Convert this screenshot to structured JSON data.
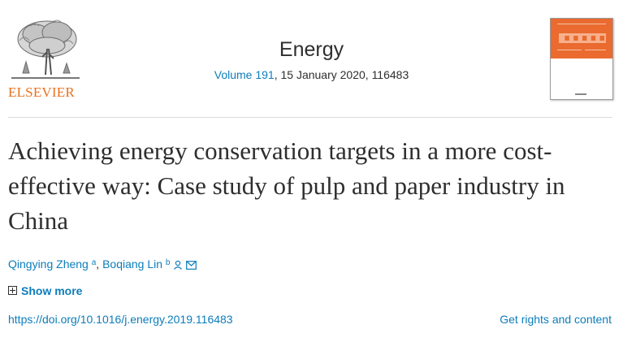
{
  "publisher": {
    "name": "ELSEVIER",
    "logo_icon": "elsevier-tree-icon"
  },
  "journal": {
    "name": "Energy",
    "volume_label": "Volume 191",
    "issue_rest": ", 15 January 2020, 116483"
  },
  "cover": {
    "icon": "journal-cover-thumbnail",
    "accent": "#ea6a2f"
  },
  "article": {
    "title": "Achieving energy conservation targets in a more cost-effective way: Case study of pulp and paper industry in China",
    "authors": [
      {
        "name": "Qingying Zheng",
        "sup": "a"
      },
      {
        "name": "Boqiang Lin",
        "sup": "b"
      }
    ],
    "author_separator": ", ",
    "show_more_label": "Show more",
    "doi": "https://doi.org/10.1016/j.energy.2019.116483",
    "rights_label": "Get rights and content"
  },
  "colors": {
    "link": "#0c7dbb",
    "text": "#2e2e2e",
    "brand_orange": "#e9711c"
  }
}
